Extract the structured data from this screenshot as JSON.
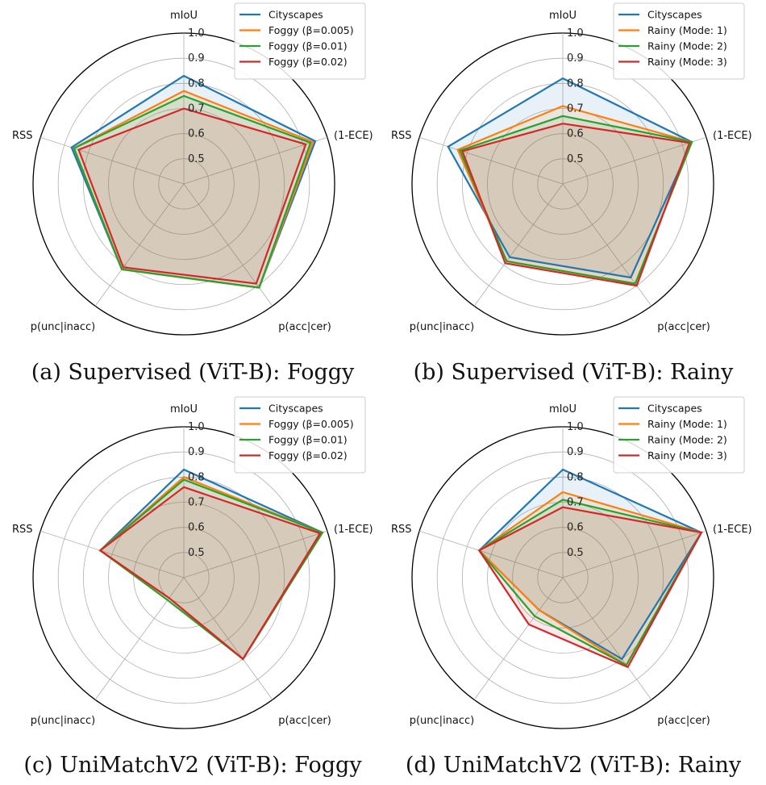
{
  "chart_data": [
    {
      "type": "radar",
      "caption": "(a) Supervised (ViT-B): Foggy",
      "axes": [
        "mIoU",
        "(1-ECE)",
        "p(acc|cer)",
        "p(unc|inacc)",
        "RSS"
      ],
      "radial_ticks": [
        "0.5",
        "0.6",
        "0.7",
        "0.8",
        "0.9",
        "1.0"
      ],
      "rlim": [
        0.4,
        1.0
      ],
      "legend_position": "top-right",
      "series": [
        {
          "name": "Cityscapes",
          "values": [
            0.83,
            0.95,
            0.91,
            0.82,
            0.87
          ]
        },
        {
          "name": "Foggy (β=0.005)",
          "values": [
            0.77,
            0.94,
            0.91,
            0.82,
            0.86
          ]
        },
        {
          "name": "Foggy (β=0.01)",
          "values": [
            0.75,
            0.93,
            0.91,
            0.82,
            0.86
          ]
        },
        {
          "name": "Foggy (β=0.02)",
          "values": [
            0.7,
            0.91,
            0.89,
            0.81,
            0.84
          ]
        }
      ]
    },
    {
      "type": "radar",
      "caption": "(b) Supervised (ViT-B): Rainy",
      "axes": [
        "mIoU",
        "(1-ECE)",
        "p(acc|cer)",
        "p(unc|inacc)",
        "RSS"
      ],
      "radial_ticks": [
        "0.5",
        "0.6",
        "0.7",
        "0.8",
        "0.9",
        "1.0"
      ],
      "rlim": [
        0.4,
        1.0
      ],
      "legend_position": "top-right",
      "series": [
        {
          "name": "Cityscapes",
          "values": [
            0.82,
            0.94,
            0.86,
            0.76,
            0.88
          ]
        },
        {
          "name": "Rainy (Mode: 1)",
          "values": [
            0.71,
            0.94,
            0.89,
            0.78,
            0.84
          ]
        },
        {
          "name": "Rainy (Mode: 2)",
          "values": [
            0.67,
            0.94,
            0.89,
            0.78,
            0.83
          ]
        },
        {
          "name": "Rainy (Mode: 3)",
          "values": [
            0.64,
            0.93,
            0.9,
            0.79,
            0.82
          ]
        }
      ]
    },
    {
      "type": "radar",
      "caption": "(c) UniMatchV2 (ViT-B): Foggy",
      "axes": [
        "mIoU",
        "(1-ECE)",
        "p(acc|cer)",
        "p(unc|inacc)",
        "RSS"
      ],
      "radial_ticks": [
        "0.5",
        "0.6",
        "0.7",
        "0.8",
        "0.9",
        "1.0"
      ],
      "rlim": [
        0.4,
        1.0
      ],
      "legend_position": "top-right",
      "series": [
        {
          "name": "Cityscapes",
          "values": [
            0.83,
            0.98,
            0.8,
            0.5,
            0.75
          ]
        },
        {
          "name": "Foggy (β=0.005)",
          "values": [
            0.8,
            0.98,
            0.8,
            0.5,
            0.75
          ]
        },
        {
          "name": "Foggy (β=0.01)",
          "values": [
            0.79,
            0.98,
            0.8,
            0.51,
            0.75
          ]
        },
        {
          "name": "Foggy (β=0.02)",
          "values": [
            0.76,
            0.97,
            0.8,
            0.5,
            0.75
          ]
        }
      ]
    },
    {
      "type": "radar",
      "caption": "(d) UniMatchV2 (ViT-B): Rainy",
      "axes": [
        "mIoU",
        "(1-ECE)",
        "p(acc|cer)",
        "p(unc|inacc)",
        "RSS"
      ],
      "radial_ticks": [
        "0.5",
        "0.6",
        "0.7",
        "0.8",
        "0.9",
        "1.0"
      ],
      "rlim": [
        0.4,
        1.0
      ],
      "legend_position": "top-right",
      "series": [
        {
          "name": "Cityscapes",
          "values": [
            0.83,
            0.98,
            0.8,
            0.56,
            0.75
          ]
        },
        {
          "name": "Rainy (Mode: 1)",
          "values": [
            0.74,
            0.98,
            0.83,
            0.56,
            0.75
          ]
        },
        {
          "name": "Rainy (Mode: 2)",
          "values": [
            0.71,
            0.98,
            0.83,
            0.59,
            0.75
          ]
        },
        {
          "name": "Rainy (Mode: 3)",
          "values": [
            0.68,
            0.98,
            0.84,
            0.63,
            0.75
          ]
        }
      ]
    }
  ],
  "series_colors": [
    "#1f77b4",
    "#ff7f0e",
    "#2ca02c",
    "#d62728"
  ]
}
